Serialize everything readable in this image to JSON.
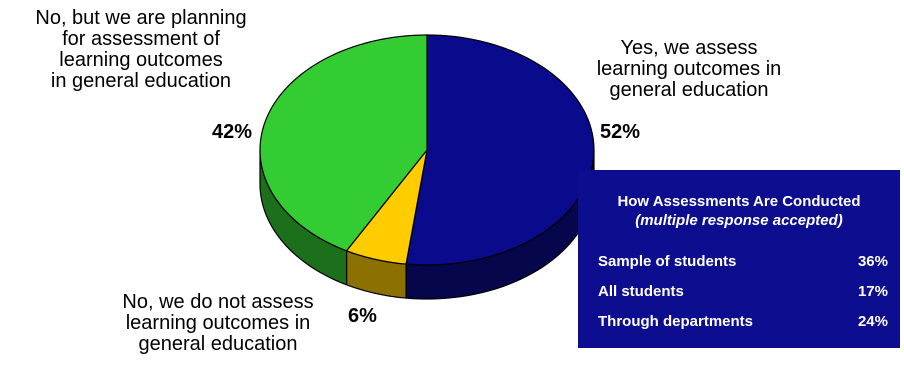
{
  "chart_data": {
    "type": "pie",
    "style": "3d",
    "slices": [
      {
        "label": "Yes, we assess\nlearning outcomes in\ngeneral education",
        "value": 52,
        "value_label": "52%",
        "color": "#0a0a8c"
      },
      {
        "label": "No, we do not assess\nlearning outcomes in\ngeneral education",
        "value": 6,
        "value_label": "6%",
        "color": "#ffcc00"
      },
      {
        "label": "No, but we are planning\nfor assessment of\nlearning outcomes\nin general education",
        "value": 42,
        "value_label": "42%",
        "color": "#33cc33"
      }
    ]
  },
  "info_box": {
    "title": "How Assessments Are Conducted",
    "subtitle": "(multiple response accepted)",
    "rows": [
      {
        "label": "Sample of students",
        "value": "36%"
      },
      {
        "label": "All students",
        "value": "17%"
      },
      {
        "label": "Through departments",
        "value": "24%"
      }
    ],
    "background": "#0d0d8f"
  }
}
